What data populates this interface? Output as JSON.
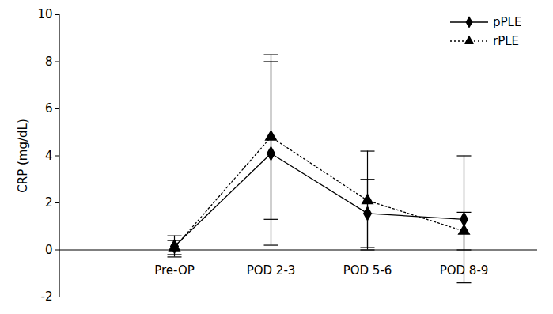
{
  "chart_data": {
    "type": "line",
    "categories": [
      "Pre-OP",
      "POD 2-3",
      "POD 5-6",
      "POD 8-9"
    ],
    "y_label": "CRP (mg/dL)",
    "ylim": [
      -2,
      10
    ],
    "yticks": [
      -2,
      0,
      2,
      4,
      6,
      8,
      10
    ],
    "legend": "top-right",
    "series": [
      {
        "name": "pPLE",
        "color": "#000000",
        "marker": "diamond",
        "line_style": "solid",
        "values": [
          0.15,
          4.1,
          1.55,
          1.3
        ],
        "error": [
          0.45,
          3.9,
          1.45,
          2.7
        ]
      },
      {
        "name": "rPLE",
        "color": "#000000",
        "marker": "triangle",
        "line_style": "dotted",
        "values": [
          0.1,
          4.8,
          2.1,
          0.8
        ],
        "error": [
          0.3,
          3.5,
          2.1,
          0.8
        ]
      }
    ]
  }
}
